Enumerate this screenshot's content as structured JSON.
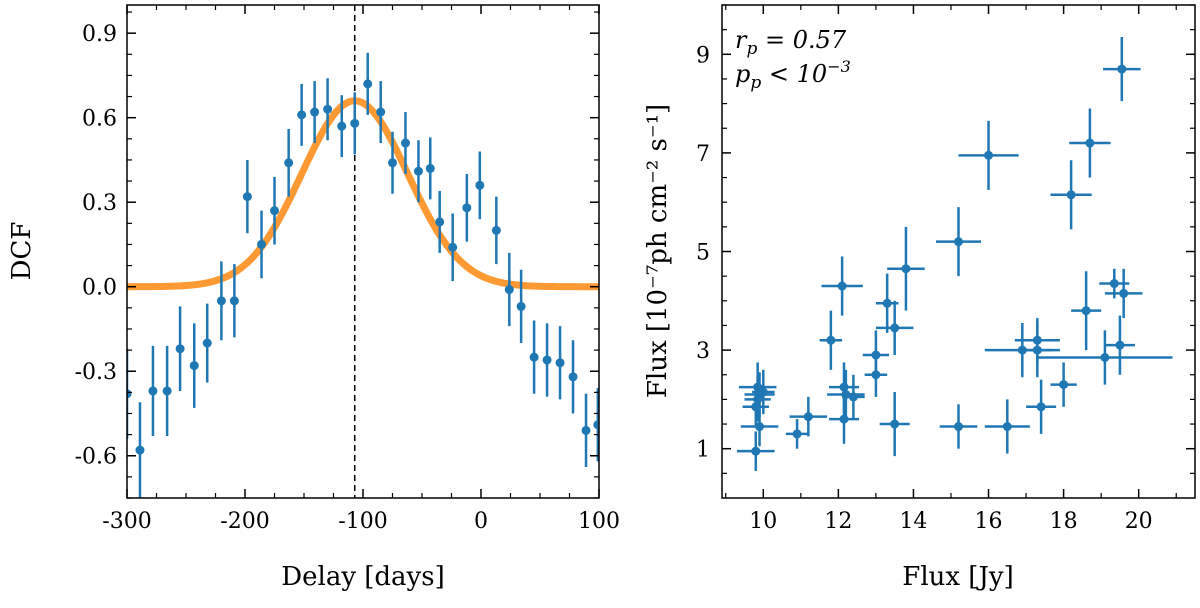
{
  "chart_data": [
    {
      "type": "scatter",
      "title": "",
      "xlabel": "Delay [days]",
      "ylabel": "DCF",
      "xlim": [
        -300,
        100
      ],
      "ylim": [
        -0.75,
        1.0
      ],
      "xticks": [
        -300,
        -200,
        -100,
        0,
        100
      ],
      "xtick_labels": [
        "-300",
        "-200",
        "-100",
        "0",
        "100"
      ],
      "yticks": [
        -0.6,
        -0.3,
        0.0,
        0.3,
        0.6,
        0.9
      ],
      "ytick_labels": [
        "-0.6",
        "-0.3",
        "0.0",
        "0.3",
        "0.6",
        "0.9"
      ],
      "vline_x": -107,
      "point_color": "#1f77b4",
      "fit_color": "#ff9933",
      "fit": {
        "type": "gaussian",
        "amplitude": 0.66,
        "center": -107,
        "sigma": 45
      },
      "points": [
        {
          "x": -300,
          "y": -0.38,
          "err": 0.16
        },
        {
          "x": -289,
          "y": -0.58,
          "err": 0.17
        },
        {
          "x": -278,
          "y": -0.37,
          "err": 0.16
        },
        {
          "x": -266,
          "y": -0.37,
          "err": 0.16
        },
        {
          "x": -255,
          "y": -0.22,
          "err": 0.15
        },
        {
          "x": -243,
          "y": -0.28,
          "err": 0.15
        },
        {
          "x": -232,
          "y": -0.2,
          "err": 0.14
        },
        {
          "x": -220,
          "y": -0.05,
          "err": 0.14
        },
        {
          "x": -209,
          "y": -0.05,
          "err": 0.13
        },
        {
          "x": -198,
          "y": 0.32,
          "err": 0.13
        },
        {
          "x": -186,
          "y": 0.15,
          "err": 0.12
        },
        {
          "x": -175,
          "y": 0.27,
          "err": 0.12
        },
        {
          "x": -163,
          "y": 0.44,
          "err": 0.12
        },
        {
          "x": -152,
          "y": 0.61,
          "err": 0.11
        },
        {
          "x": -141,
          "y": 0.62,
          "err": 0.11
        },
        {
          "x": -130,
          "y": 0.63,
          "err": 0.11
        },
        {
          "x": -118,
          "y": 0.57,
          "err": 0.11
        },
        {
          "x": -107,
          "y": 0.58,
          "err": 0.11
        },
        {
          "x": -96,
          "y": 0.72,
          "err": 0.11
        },
        {
          "x": -85,
          "y": 0.62,
          "err": 0.11
        },
        {
          "x": -75,
          "y": 0.44,
          "err": 0.11
        },
        {
          "x": -64,
          "y": 0.51,
          "err": 0.11
        },
        {
          "x": -53,
          "y": 0.41,
          "err": 0.11
        },
        {
          "x": -43,
          "y": 0.42,
          "err": 0.11
        },
        {
          "x": -35,
          "y": 0.23,
          "err": 0.11
        },
        {
          "x": -24,
          "y": 0.14,
          "err": 0.12
        },
        {
          "x": -12,
          "y": 0.28,
          "err": 0.12
        },
        {
          "x": -1,
          "y": 0.36,
          "err": 0.12
        },
        {
          "x": 13,
          "y": 0.2,
          "err": 0.12
        },
        {
          "x": 24,
          "y": -0.01,
          "err": 0.13
        },
        {
          "x": 34,
          "y": -0.07,
          "err": 0.13
        },
        {
          "x": 45,
          "y": -0.25,
          "err": 0.13
        },
        {
          "x": 56,
          "y": -0.26,
          "err": 0.13
        },
        {
          "x": 67,
          "y": -0.27,
          "err": 0.13
        },
        {
          "x": 78,
          "y": -0.32,
          "err": 0.13
        },
        {
          "x": 89,
          "y": -0.51,
          "err": 0.13
        },
        {
          "x": 99,
          "y": -0.49,
          "err": 0.13
        }
      ]
    },
    {
      "type": "scatter",
      "title": "",
      "xlabel": "Flux [Jy]",
      "ylabel": "Flux [10⁻⁷ph cm⁻² s⁻¹]",
      "xlim": [
        8.9,
        21.5
      ],
      "ylim": [
        0.0,
        10.0
      ],
      "xticks": [
        10,
        12,
        14,
        16,
        18,
        20
      ],
      "xtick_labels": [
        "10",
        "12",
        "14",
        "16",
        "18",
        "20"
      ],
      "yticks": [
        1,
        3,
        5,
        7,
        9
      ],
      "ytick_labels": [
        "1",
        "3",
        "5",
        "7",
        "9"
      ],
      "point_color": "#1f77b4",
      "annotations": {
        "line1": "r_p = 0.57",
        "line2": "p_p < 10^-3"
      },
      "points": [
        {
          "x": 9.85,
          "y": 2.25,
          "xerr": 0.5,
          "yerr": 0.5
        },
        {
          "x": 9.9,
          "y": 2.1,
          "xerr": 0.4,
          "yerr": 0.45
        },
        {
          "x": 9.85,
          "y": 2.0,
          "xerr": 0.35,
          "yerr": 0.45
        },
        {
          "x": 9.8,
          "y": 1.85,
          "xerr": 0.35,
          "yerr": 0.4
        },
        {
          "x": 9.9,
          "y": 1.45,
          "xerr": 0.5,
          "yerr": 0.4
        },
        {
          "x": 9.8,
          "y": 0.95,
          "xerr": 0.5,
          "yerr": 0.4
        },
        {
          "x": 10.0,
          "y": 2.15,
          "xerr": 0.3,
          "yerr": 0.45
        },
        {
          "x": 10.9,
          "y": 1.3,
          "xerr": 0.3,
          "yerr": 0.3
        },
        {
          "x": 11.2,
          "y": 1.65,
          "xerr": 0.5,
          "yerr": 0.4
        },
        {
          "x": 11.8,
          "y": 3.2,
          "xerr": 0.3,
          "yerr": 0.6
        },
        {
          "x": 12.1,
          "y": 4.3,
          "xerr": 0.55,
          "yerr": 0.6
        },
        {
          "x": 12.15,
          "y": 2.25,
          "xerr": 0.4,
          "yerr": 0.5
        },
        {
          "x": 12.2,
          "y": 2.1,
          "xerr": 0.5,
          "yerr": 0.5
        },
        {
          "x": 12.15,
          "y": 1.6,
          "xerr": 0.4,
          "yerr": 0.5
        },
        {
          "x": 12.4,
          "y": 2.05,
          "xerr": 0.3,
          "yerr": 0.45
        },
        {
          "x": 13.0,
          "y": 2.9,
          "xerr": 0.35,
          "yerr": 0.5
        },
        {
          "x": 13.0,
          "y": 2.5,
          "xerr": 0.3,
          "yerr": 0.45
        },
        {
          "x": 13.3,
          "y": 3.95,
          "xerr": 0.3,
          "yerr": 0.6
        },
        {
          "x": 13.5,
          "y": 3.45,
          "xerr": 0.5,
          "yerr": 0.55
        },
        {
          "x": 13.8,
          "y": 4.65,
          "xerr": 0.5,
          "yerr": 0.85
        },
        {
          "x": 13.5,
          "y": 1.5,
          "xerr": 0.4,
          "yerr": 0.65
        },
        {
          "x": 15.2,
          "y": 5.2,
          "xerr": 0.6,
          "yerr": 0.7
        },
        {
          "x": 15.2,
          "y": 1.45,
          "xerr": 0.5,
          "yerr": 0.45
        },
        {
          "x": 16.0,
          "y": 6.95,
          "xerr": 0.8,
          "yerr": 0.7
        },
        {
          "x": 16.5,
          "y": 1.45,
          "xerr": 0.6,
          "yerr": 0.55
        },
        {
          "x": 16.9,
          "y": 3.0,
          "xerr": 1.0,
          "yerr": 0.55
        },
        {
          "x": 17.3,
          "y": 3.2,
          "xerr": 0.6,
          "yerr": 0.45
        },
        {
          "x": 17.3,
          "y": 3.0,
          "xerr": 0.4,
          "yerr": 0.55
        },
        {
          "x": 17.4,
          "y": 1.85,
          "xerr": 0.4,
          "yerr": 0.55
        },
        {
          "x": 18.0,
          "y": 2.3,
          "xerr": 0.35,
          "yerr": 0.45
        },
        {
          "x": 18.2,
          "y": 6.15,
          "xerr": 0.55,
          "yerr": 0.7
        },
        {
          "x": 18.6,
          "y": 3.8,
          "xerr": 0.4,
          "yerr": 0.8
        },
        {
          "x": 18.7,
          "y": 7.2,
          "xerr": 0.55,
          "yerr": 0.7
        },
        {
          "x": 19.1,
          "y": 2.85,
          "xerr": 1.8,
          "yerr": 0.55
        },
        {
          "x": 19.35,
          "y": 4.35,
          "xerr": 0.4,
          "yerr": 0.3
        },
        {
          "x": 19.5,
          "y": 3.1,
          "xerr": 0.4,
          "yerr": 0.6
        },
        {
          "x": 19.6,
          "y": 4.15,
          "xerr": 0.5,
          "yerr": 0.5
        },
        {
          "x": 19.55,
          "y": 8.7,
          "xerr": 0.5,
          "yerr": 0.65
        }
      ]
    }
  ]
}
